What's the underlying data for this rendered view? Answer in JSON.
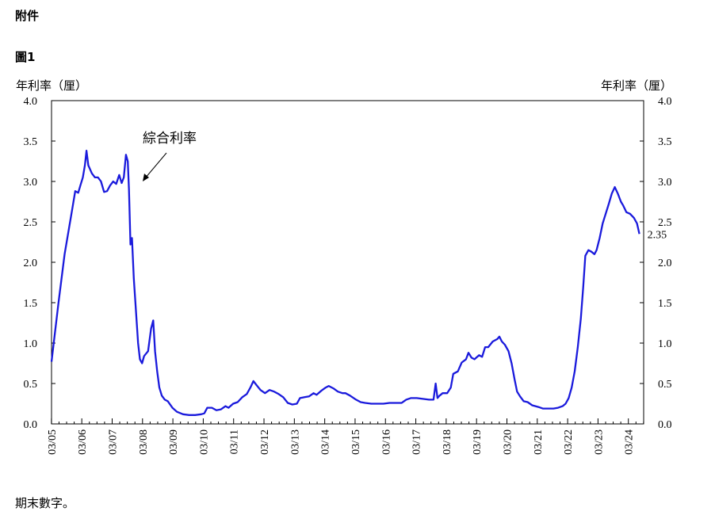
{
  "header": {
    "attachment": "附件",
    "figure_label": "圖1"
  },
  "note": "期末數字。",
  "chart_data": {
    "type": "line",
    "ylabel_left": "年利率（厘）",
    "ylabel_right": "年利率（厘）",
    "ylim": [
      0,
      4.0
    ],
    "yticks": [
      "0.0",
      "0.5",
      "1.0",
      "1.5",
      "2.0",
      "2.5",
      "3.0",
      "3.5",
      "4.0"
    ],
    "xticks": [
      "03/05",
      "03/06",
      "03/07",
      "03/08",
      "03/09",
      "03/10",
      "03/11",
      "03/12",
      "03/13",
      "03/14",
      "03/15",
      "03/16",
      "03/17",
      "03/18",
      "03/19",
      "03/20",
      "03/21",
      "03/22",
      "03/23",
      "03/24"
    ],
    "xlim": [
      2005.17,
      2024.67
    ],
    "annotation": "綜合利率",
    "end_label": "2.35",
    "series": [
      {
        "color": "#1a1adc",
        "points": [
          [
            2005.17,
            0.77
          ],
          [
            2005.4,
            1.5
          ],
          [
            2005.6,
            2.1
          ],
          [
            2005.85,
            2.65
          ],
          [
            2005.95,
            2.88
          ],
          [
            2006.05,
            2.86
          ],
          [
            2006.12,
            2.95
          ],
          [
            2006.2,
            3.05
          ],
          [
            2006.27,
            3.2
          ],
          [
            2006.32,
            3.38
          ],
          [
            2006.38,
            3.2
          ],
          [
            2006.5,
            3.1
          ],
          [
            2006.6,
            3.05
          ],
          [
            2006.7,
            3.05
          ],
          [
            2006.8,
            3.0
          ],
          [
            2006.9,
            2.87
          ],
          [
            2007.0,
            2.88
          ],
          [
            2007.1,
            2.95
          ],
          [
            2007.2,
            3.0
          ],
          [
            2007.3,
            2.97
          ],
          [
            2007.4,
            3.08
          ],
          [
            2007.48,
            2.98
          ],
          [
            2007.55,
            3.05
          ],
          [
            2007.62,
            3.33
          ],
          [
            2007.68,
            3.25
          ],
          [
            2007.72,
            2.9
          ],
          [
            2007.77,
            2.22
          ],
          [
            2007.82,
            2.3
          ],
          [
            2007.88,
            1.8
          ],
          [
            2007.95,
            1.4
          ],
          [
            2008.02,
            1.0
          ],
          [
            2008.08,
            0.8
          ],
          [
            2008.15,
            0.75
          ],
          [
            2008.22,
            0.84
          ],
          [
            2008.35,
            0.9
          ],
          [
            2008.45,
            1.18
          ],
          [
            2008.52,
            1.28
          ],
          [
            2008.58,
            0.9
          ],
          [
            2008.65,
            0.65
          ],
          [
            2008.72,
            0.45
          ],
          [
            2008.8,
            0.35
          ],
          [
            2008.9,
            0.3
          ],
          [
            2009.0,
            0.28
          ],
          [
            2009.15,
            0.2
          ],
          [
            2009.3,
            0.15
          ],
          [
            2009.5,
            0.12
          ],
          [
            2009.7,
            0.11
          ],
          [
            2009.9,
            0.11
          ],
          [
            2010.1,
            0.12
          ],
          [
            2010.2,
            0.13
          ],
          [
            2010.3,
            0.2
          ],
          [
            2010.45,
            0.2
          ],
          [
            2010.6,
            0.17
          ],
          [
            2010.75,
            0.18
          ],
          [
            2010.9,
            0.22
          ],
          [
            2011.0,
            0.2
          ],
          [
            2011.15,
            0.25
          ],
          [
            2011.3,
            0.27
          ],
          [
            2011.45,
            0.33
          ],
          [
            2011.6,
            0.37
          ],
          [
            2011.72,
            0.45
          ],
          [
            2011.82,
            0.53
          ],
          [
            2011.92,
            0.48
          ],
          [
            2012.05,
            0.42
          ],
          [
            2012.2,
            0.38
          ],
          [
            2012.35,
            0.42
          ],
          [
            2012.5,
            0.4
          ],
          [
            2012.65,
            0.37
          ],
          [
            2012.8,
            0.33
          ],
          [
            2012.95,
            0.26
          ],
          [
            2013.1,
            0.24
          ],
          [
            2013.25,
            0.25
          ],
          [
            2013.35,
            0.32
          ],
          [
            2013.5,
            0.33
          ],
          [
            2013.65,
            0.34
          ],
          [
            2013.8,
            0.38
          ],
          [
            2013.9,
            0.36
          ],
          [
            2014.05,
            0.41
          ],
          [
            2014.2,
            0.45
          ],
          [
            2014.3,
            0.47
          ],
          [
            2014.45,
            0.44
          ],
          [
            2014.6,
            0.4
          ],
          [
            2014.75,
            0.38
          ],
          [
            2014.85,
            0.38
          ],
          [
            2015.0,
            0.35
          ],
          [
            2015.2,
            0.3
          ],
          [
            2015.35,
            0.27
          ],
          [
            2015.5,
            0.26
          ],
          [
            2015.7,
            0.25
          ],
          [
            2015.9,
            0.25
          ],
          [
            2016.1,
            0.25
          ],
          [
            2016.3,
            0.26
          ],
          [
            2016.5,
            0.26
          ],
          [
            2016.7,
            0.26
          ],
          [
            2016.85,
            0.3
          ],
          [
            2017.0,
            0.32
          ],
          [
            2017.2,
            0.32
          ],
          [
            2017.4,
            0.31
          ],
          [
            2017.6,
            0.3
          ],
          [
            2017.75,
            0.3
          ],
          [
            2017.82,
            0.5
          ],
          [
            2017.88,
            0.32
          ],
          [
            2017.95,
            0.35
          ],
          [
            2018.05,
            0.38
          ],
          [
            2018.2,
            0.38
          ],
          [
            2018.32,
            0.45
          ],
          [
            2018.4,
            0.62
          ],
          [
            2018.55,
            0.65
          ],
          [
            2018.68,
            0.76
          ],
          [
            2018.82,
            0.8
          ],
          [
            2018.9,
            0.88
          ],
          [
            2019.0,
            0.82
          ],
          [
            2019.1,
            0.8
          ],
          [
            2019.25,
            0.85
          ],
          [
            2019.35,
            0.83
          ],
          [
            2019.45,
            0.95
          ],
          [
            2019.55,
            0.95
          ],
          [
            2019.7,
            1.02
          ],
          [
            2019.85,
            1.05
          ],
          [
            2019.92,
            1.08
          ],
          [
            2020.0,
            1.02
          ],
          [
            2020.1,
            0.98
          ],
          [
            2020.22,
            0.9
          ],
          [
            2020.32,
            0.75
          ],
          [
            2020.42,
            0.55
          ],
          [
            2020.5,
            0.4
          ],
          [
            2020.6,
            0.34
          ],
          [
            2020.72,
            0.28
          ],
          [
            2020.85,
            0.27
          ],
          [
            2021.0,
            0.23
          ],
          [
            2021.2,
            0.21
          ],
          [
            2021.35,
            0.19
          ],
          [
            2021.5,
            0.19
          ],
          [
            2021.7,
            0.19
          ],
          [
            2021.85,
            0.2
          ],
          [
            2022.0,
            0.22
          ],
          [
            2022.1,
            0.25
          ],
          [
            2022.2,
            0.32
          ],
          [
            2022.3,
            0.45
          ],
          [
            2022.4,
            0.65
          ],
          [
            2022.5,
            0.95
          ],
          [
            2022.6,
            1.3
          ],
          [
            2022.68,
            1.7
          ],
          [
            2022.75,
            2.08
          ],
          [
            2022.85,
            2.15
          ],
          [
            2022.95,
            2.13
          ],
          [
            2023.05,
            2.1
          ],
          [
            2023.12,
            2.15
          ],
          [
            2023.22,
            2.3
          ],
          [
            2023.32,
            2.48
          ],
          [
            2023.42,
            2.6
          ],
          [
            2023.52,
            2.72
          ],
          [
            2023.62,
            2.85
          ],
          [
            2023.72,
            2.93
          ],
          [
            2023.82,
            2.85
          ],
          [
            2023.92,
            2.75
          ],
          [
            2024.0,
            2.7
          ],
          [
            2024.1,
            2.62
          ],
          [
            2024.22,
            2.6
          ],
          [
            2024.35,
            2.55
          ],
          [
            2024.45,
            2.48
          ],
          [
            2024.53,
            2.35
          ]
        ]
      }
    ]
  }
}
